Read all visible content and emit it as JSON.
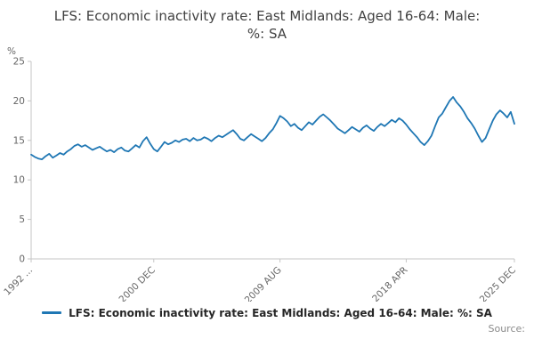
{
  "chart_data": {
    "type": "line",
    "title": "LFS: Economic inactivity rate: East Midlands: Aged 16-64: Male: %: SA",
    "xlabel": "",
    "ylabel": "%",
    "ylim": [
      0,
      25
    ],
    "yticks": [
      0,
      5,
      10,
      15,
      20,
      25
    ],
    "grid": false,
    "legend_position": "bottom",
    "xticks": [
      {
        "label": "1992 ...",
        "index": 0
      },
      {
        "label": "2000 DEC",
        "index": 34
      },
      {
        "label": "2009 AUG",
        "index": 69
      },
      {
        "label": "2018 APR",
        "index": 104
      },
      {
        "label": "2025 DEC",
        "index": 134
      }
    ],
    "series": [
      {
        "name": "LFS: Economic inactivity rate: East Midlands: Aged 16-64: Male: %: SA",
        "color": "#1f77b4",
        "frequency": "quarterly",
        "values": [
          13.2,
          12.9,
          12.7,
          12.6,
          13.0,
          13.3,
          12.8,
          13.1,
          13.4,
          13.2,
          13.6,
          13.9,
          14.3,
          14.5,
          14.2,
          14.4,
          14.1,
          13.8,
          14.0,
          14.2,
          13.9,
          13.6,
          13.8,
          13.5,
          13.9,
          14.1,
          13.7,
          13.6,
          14.0,
          14.4,
          14.1,
          14.9,
          15.4,
          14.6,
          13.9,
          13.6,
          14.2,
          14.8,
          14.5,
          14.7,
          15.0,
          14.8,
          15.1,
          15.2,
          14.9,
          15.3,
          15.0,
          15.1,
          15.4,
          15.2,
          14.9,
          15.3,
          15.6,
          15.4,
          15.7,
          16.0,
          16.3,
          15.8,
          15.2,
          15.0,
          15.4,
          15.8,
          15.5,
          15.2,
          14.9,
          15.3,
          15.9,
          16.4,
          17.2,
          18.1,
          17.8,
          17.4,
          16.8,
          17.1,
          16.6,
          16.3,
          16.8,
          17.3,
          17.0,
          17.5,
          18.0,
          18.3,
          17.9,
          17.5,
          17.0,
          16.5,
          16.2,
          15.9,
          16.3,
          16.7,
          16.4,
          16.1,
          16.6,
          16.9,
          16.5,
          16.2,
          16.7,
          17.1,
          16.8,
          17.2,
          17.6,
          17.3,
          17.8,
          17.5,
          17.0,
          16.4,
          15.9,
          15.4,
          14.8,
          14.4,
          14.9,
          15.6,
          16.8,
          17.9,
          18.4,
          19.2,
          20.0,
          20.5,
          19.8,
          19.3,
          18.6,
          17.8,
          17.2,
          16.5,
          15.6,
          14.8,
          15.3,
          16.4,
          17.5,
          18.3,
          18.8,
          18.4,
          17.9,
          18.6,
          17.1
        ]
      }
    ]
  },
  "legend": {
    "label": "LFS: Economic inactivity rate: East Midlands: Aged 16-64: Male: %: SA",
    "swatch_color": "#1f77b4"
  },
  "footer": {
    "source": "Source:"
  }
}
